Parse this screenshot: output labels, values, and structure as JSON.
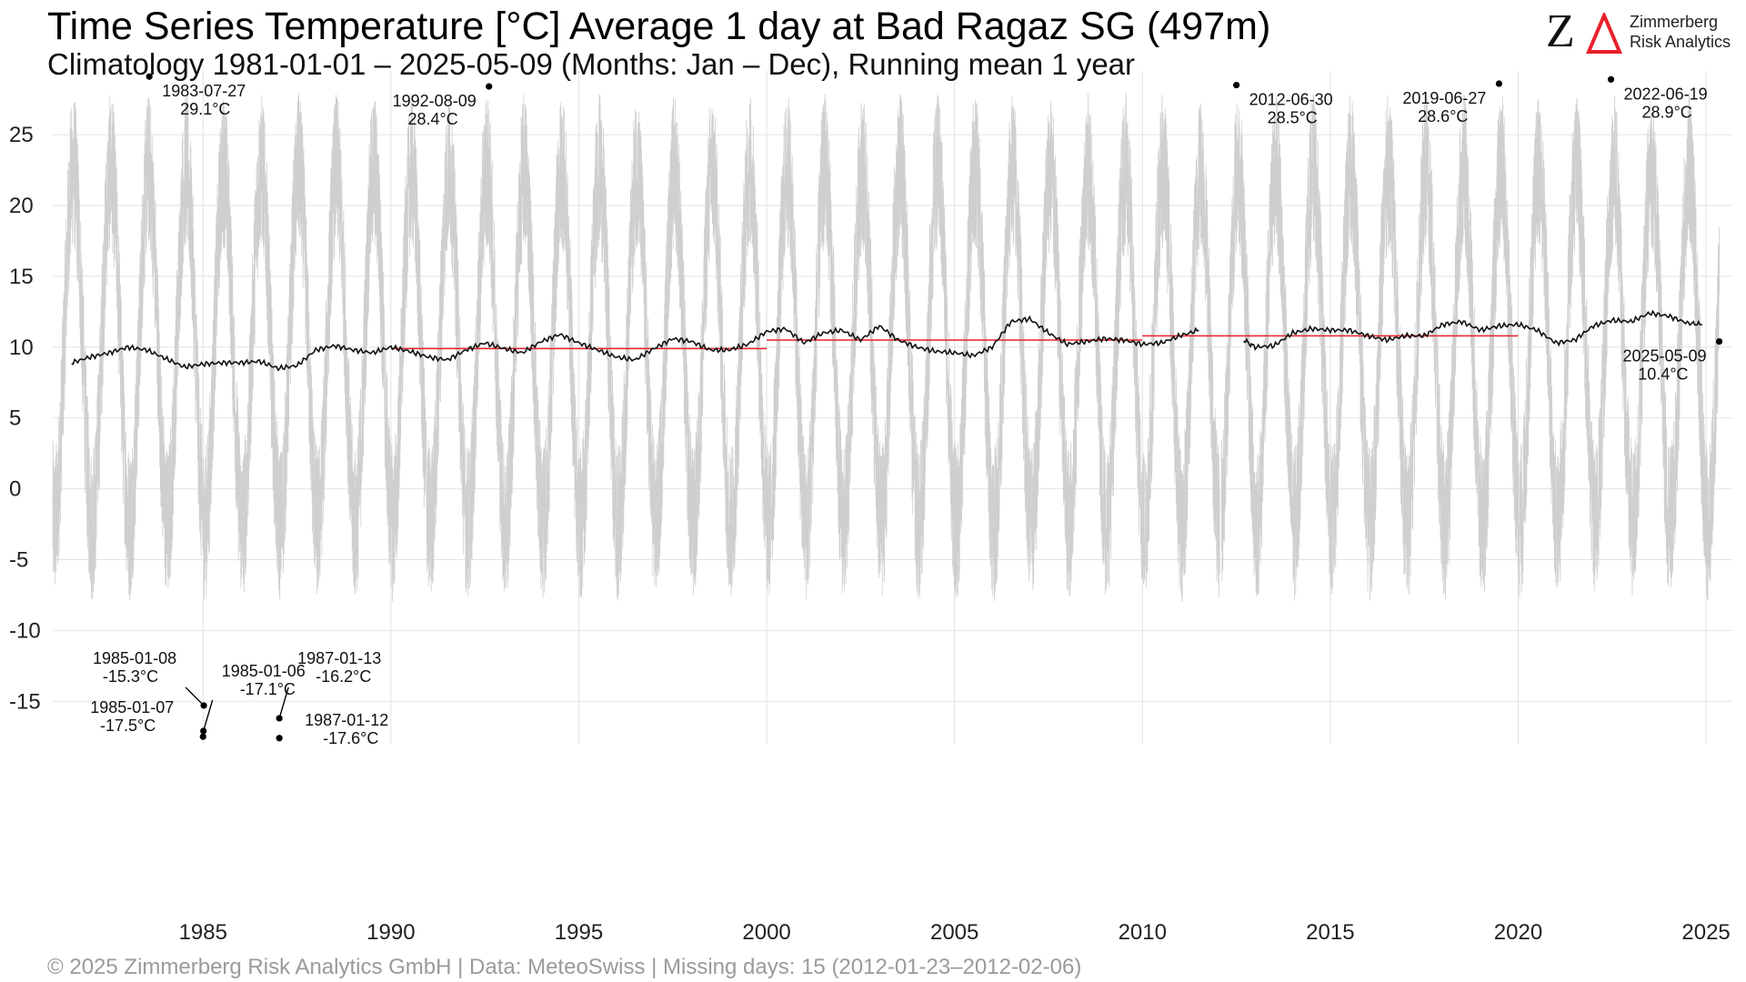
{
  "header": {
    "title": "Time Series Temperature [°C] Average 1 day at Bad Ragaz  SG (497m)",
    "subtitle": "Climatology 1981-01-01 – 2025-05-09 (Months: Jan – Dec), Running mean 1 year"
  },
  "logo": {
    "mark": "Z",
    "line1": "Zimmerberg",
    "line2": "Risk Analytics",
    "accent_color": "#e8202a"
  },
  "footer": {
    "text": "©  2025 Zimmerberg Risk Analytics GmbH | Data: MeteoSwiss | Missing days: 15 (2012-01-23–2012-02-06)"
  },
  "colors": {
    "daily": "#cfcfcf",
    "running_mean": "#111111",
    "decade_mean": "#e8202a",
    "grid": "#e2e2e2"
  },
  "chart_data": {
    "type": "line",
    "xlim": [
      1981.0,
      2025.7
    ],
    "ylim": [
      -18,
      29.5
    ],
    "x_ticks": [
      1985,
      1990,
      1995,
      2000,
      2005,
      2010,
      2015,
      2020,
      2025
    ],
    "y_ticks": [
      -15,
      -10,
      -5,
      0,
      5,
      10,
      15,
      20,
      25
    ],
    "grid": true,
    "missing_gap": [
      "2012-01-23",
      "2012-02-06"
    ],
    "daily_series": {
      "description": "daily mean temperature, seasonal cycle",
      "annual_mean": 10.0,
      "summer_peak_typical": 22,
      "winter_min_typical": -3
    },
    "running_mean": {
      "x": [
        1981.5,
        1982.0,
        1982.5,
        1983.0,
        1983.5,
        1984.0,
        1984.5,
        1985.0,
        1985.5,
        1986.0,
        1986.5,
        1987.0,
        1987.5,
        1988.0,
        1988.5,
        1989.0,
        1989.5,
        1990.0,
        1990.5,
        1991.0,
        1991.5,
        1992.0,
        1992.5,
        1993.0,
        1993.5,
        1994.0,
        1994.5,
        1995.0,
        1995.5,
        1996.0,
        1996.5,
        1997.0,
        1997.5,
        1998.0,
        1998.5,
        1999.0,
        1999.5,
        2000.0,
        2000.5,
        2001.0,
        2001.5,
        2002.0,
        2002.5,
        2003.0,
        2003.5,
        2004.0,
        2004.5,
        2005.0,
        2005.5,
        2006.0,
        2006.5,
        2007.0,
        2007.5,
        2008.0,
        2008.5,
        2009.0,
        2009.5,
        2010.0,
        2010.5,
        2011.0,
        2011.5
      ],
      "y": [
        8.9,
        9.3,
        9.6,
        10.0,
        9.8,
        9.2,
        8.6,
        8.8,
        8.9,
        8.9,
        9.0,
        8.5,
        8.7,
        9.8,
        10.1,
        9.8,
        9.6,
        10.0,
        9.7,
        9.3,
        9.1,
        9.8,
        10.3,
        9.9,
        9.6,
        10.4,
        10.9,
        10.3,
        9.8,
        9.3,
        9.1,
        9.9,
        10.6,
        10.4,
        9.8,
        9.8,
        10.2,
        11.1,
        11.3,
        10.3,
        11.0,
        11.2,
        10.5,
        11.5,
        10.5,
        10.0,
        9.7,
        9.6,
        9.4,
        10.0,
        11.8,
        12.0,
        11.0,
        10.2,
        10.4,
        10.6,
        10.5,
        10.2,
        10.3,
        10.8,
        11.2
      ]
    },
    "running_mean_after_gap": {
      "x": [
        2012.7,
        2013.0,
        2013.5,
        2014.0,
        2014.5,
        2015.0,
        2015.5,
        2016.0,
        2016.5,
        2017.0,
        2017.5,
        2018.0,
        2018.5,
        2019.0,
        2019.5,
        2020.0,
        2020.5,
        2021.0,
        2021.5,
        2022.0,
        2022.5,
        2023.0,
        2023.5,
        2024.0,
        2024.5,
        2024.9
      ],
      "y": [
        10.5,
        10.0,
        10.1,
        11.0,
        11.3,
        11.2,
        11.2,
        10.8,
        10.5,
        10.8,
        10.8,
        11.6,
        11.8,
        11.2,
        11.5,
        11.6,
        11.2,
        10.3,
        10.5,
        11.5,
        11.9,
        11.8,
        12.4,
        12.2,
        11.7,
        11.6
      ]
    },
    "decade_means": [
      {
        "x": [
          1990.0,
          2000.0
        ],
        "y": 9.9
      },
      {
        "x": [
          2000.0,
          2010.0
        ],
        "y": 10.5
      },
      {
        "x": [
          2010.0,
          2020.0
        ],
        "y": 10.8
      }
    ],
    "annotations": [
      {
        "date": "1983-07-27",
        "value": "29.1°C",
        "x": 1983.57,
        "y": 29.1,
        "label_side": "right-below"
      },
      {
        "date": "1992-08-09",
        "value": "28.4°C",
        "x": 1992.61,
        "y": 28.4,
        "label_side": "left-below"
      },
      {
        "date": "2012-06-30",
        "value": "28.5°C",
        "x": 2012.5,
        "y": 28.5,
        "label_side": "right-below"
      },
      {
        "date": "2019-06-27",
        "value": "28.6°C",
        "x": 2019.49,
        "y": 28.6,
        "label_side": "left-below"
      },
      {
        "date": "2022-06-19",
        "value": "28.9°C",
        "x": 2022.47,
        "y": 28.9,
        "label_side": "right-below"
      },
      {
        "date": "2025-05-09",
        "value": "10.4°C",
        "x": 2025.35,
        "y": 10.4,
        "label_side": "left-below"
      },
      {
        "date": "1985-01-08",
        "value": "-15.3°C",
        "x": 1985.02,
        "y": -15.3,
        "label_side": "left-above"
      },
      {
        "date": "1985-01-06",
        "value": "-17.1°C",
        "x": 1985.01,
        "y": -17.1,
        "label_side": "right-above"
      },
      {
        "date": "1985-01-07",
        "value": "-17.5°C",
        "x": 1985.0,
        "y": -17.5,
        "label_side": "left"
      },
      {
        "date": "1987-01-13",
        "value": "-16.2°C",
        "x": 1987.03,
        "y": -16.2,
        "label_side": "right-above"
      },
      {
        "date": "1987-01-12",
        "value": "-17.6°C",
        "x": 1987.03,
        "y": -17.6,
        "label_side": "right"
      }
    ]
  }
}
